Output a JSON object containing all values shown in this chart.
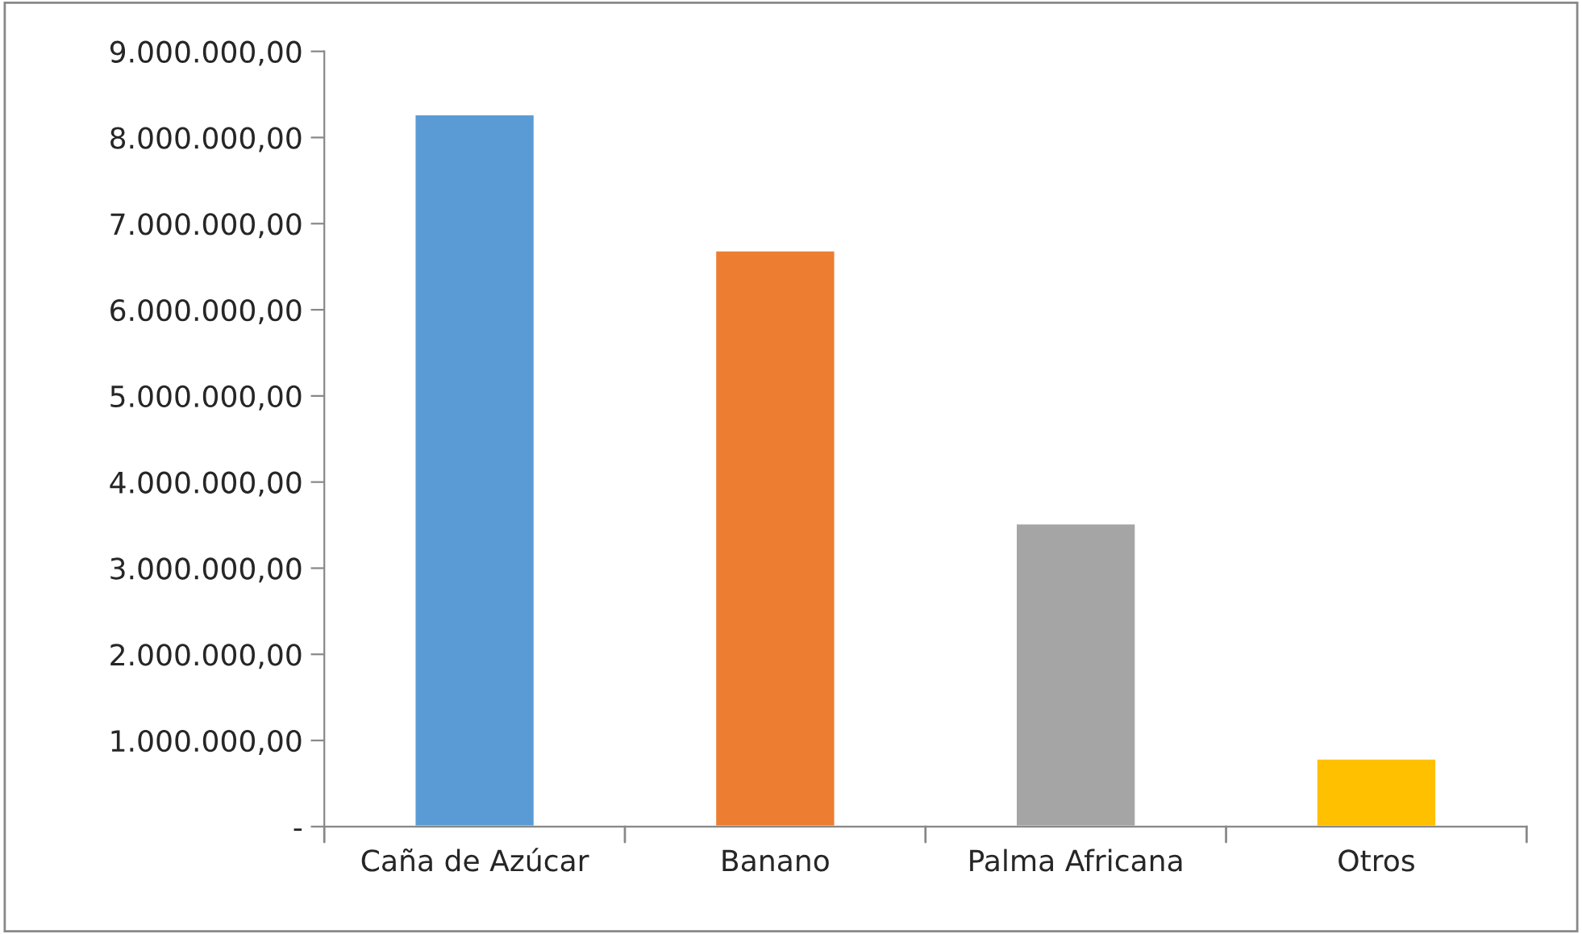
{
  "chart_data": {
    "type": "bar",
    "categories": [
      "Caña de Azúcar",
      "Banano",
      "Palma Africana",
      "Otros"
    ],
    "values": [
      8270000,
      6690000,
      3520000,
      790000
    ],
    "colors": [
      "#5b9bd5",
      "#ed7d31",
      "#a5a5a5",
      "#ffc000"
    ],
    "ylim": [
      0,
      9000000
    ],
    "yticks": [
      {
        "value": 0,
        "label": "-"
      },
      {
        "value": 1000000,
        "label": "1.000.000,00"
      },
      {
        "value": 2000000,
        "label": "2.000.000,00"
      },
      {
        "value": 3000000,
        "label": "3.000.000,00"
      },
      {
        "value": 4000000,
        "label": "4.000.000,00"
      },
      {
        "value": 5000000,
        "label": "5.000.000,00"
      },
      {
        "value": 6000000,
        "label": "6.000.000,00"
      },
      {
        "value": 7000000,
        "label": "7.000.000,00"
      },
      {
        "value": 8000000,
        "label": "8.000.000,00"
      },
      {
        "value": 9000000,
        "label": "9.000.000,00"
      }
    ],
    "grid": false
  }
}
